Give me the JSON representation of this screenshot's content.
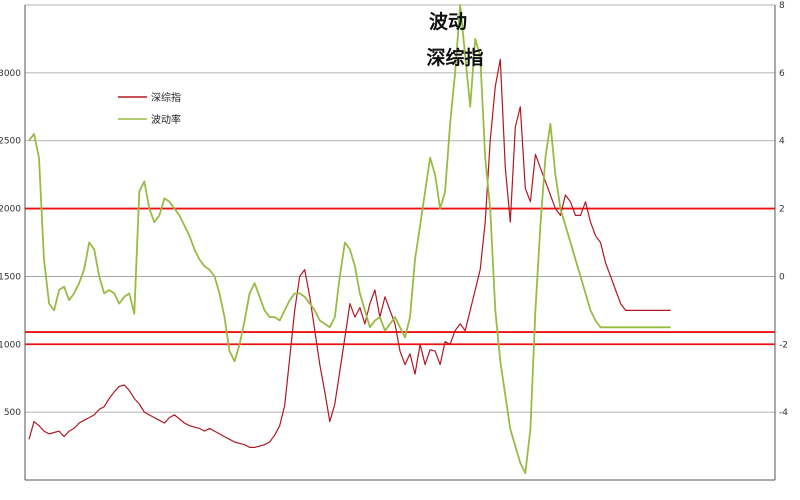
{
  "chart_data": {
    "type": "line",
    "title_line1": "波动",
    "title_line2": "深综指",
    "legend": {
      "position": "top-left",
      "items": [
        "深综指",
        "波动率"
      ]
    },
    "left_axis": {
      "ticks": [
        "500",
        "1000",
        "1500",
        "2000",
        "2500",
        "3000"
      ],
      "ylim": [
        0,
        3500
      ],
      "tick_values": [
        500,
        1000,
        1500,
        2000,
        2500,
        3000
      ]
    },
    "right_axis": {
      "ticks": [
        "-4",
        "-2",
        "0",
        "2",
        "4",
        "6",
        "8"
      ],
      "ylim": [
        -6,
        8
      ],
      "tick_values": [
        -4,
        -2,
        0,
        2,
        4,
        6,
        8
      ]
    },
    "grid": true,
    "reference_lines": [
      {
        "axis": "left",
        "value": 2000
      },
      {
        "axis": "left",
        "value": 1090
      },
      {
        "axis": "left",
        "value": 1000
      }
    ],
    "colors": {
      "szzs": "#b01822",
      "vol": "#99bb44",
      "ref": "#ee1111"
    },
    "x_count": 149,
    "series": [
      {
        "name": "深综指",
        "axis": "left",
        "values": [
          300,
          430,
          400,
          360,
          340,
          350,
          360,
          320,
          360,
          380,
          420,
          440,
          460,
          480,
          520,
          540,
          600,
          650,
          690,
          700,
          660,
          600,
          560,
          500,
          480,
          460,
          440,
          420,
          460,
          480,
          450,
          420,
          400,
          390,
          380,
          360,
          380,
          360,
          340,
          320,
          300,
          280,
          270,
          260,
          240,
          240,
          250,
          260,
          280,
          330,
          400,
          550,
          900,
          1250,
          1500,
          1550,
          1350,
          1100,
          850,
          650,
          430,
          560,
          800,
          1050,
          1300,
          1200,
          1270,
          1150,
          1300,
          1400,
          1200,
          1350,
          1250,
          1150,
          950,
          850,
          930,
          780,
          1000,
          850,
          960,
          950,
          850,
          1020,
          1000,
          1100,
          1150,
          1100,
          1250,
          1400,
          1550,
          1900,
          2500,
          2900,
          3100,
          2300,
          1900,
          2600,
          2750,
          2150,
          2050,
          2400,
          2300,
          2200,
          2100,
          2000,
          1950,
          2100,
          2050,
          1950,
          1950,
          2050,
          1900,
          1800,
          1750,
          1600,
          1500,
          1400,
          1300,
          1250,
          1250,
          1250,
          1250,
          1250,
          1250,
          1250,
          1250,
          1250,
          1250,
          1250,
          1250,
          1250,
          1250,
          1250,
          1250,
          1250,
          1250,
          1250,
          1250,
          1250,
          1250,
          1250,
          1250,
          1250,
          1250,
          1250,
          1250
        ],
        "visible_until_index": 128
      },
      {
        "name": "波动率",
        "axis": "right",
        "values": [
          4.0,
          4.2,
          3.5,
          0.5,
          -0.8,
          -1.0,
          -0.4,
          -0.3,
          -0.7,
          -0.5,
          -0.2,
          0.2,
          1.0,
          0.8,
          0.0,
          -0.5,
          -0.4,
          -0.5,
          -0.8,
          -0.6,
          -0.5,
          -1.1,
          2.5,
          2.8,
          2.0,
          1.6,
          1.8,
          2.3,
          2.2,
          2.0,
          1.8,
          1.5,
          1.2,
          0.8,
          0.5,
          0.3,
          0.2,
          0.0,
          -0.5,
          -1.2,
          -2.2,
          -2.5,
          -2.0,
          -1.3,
          -0.5,
          -0.2,
          -0.6,
          -1.0,
          -1.2,
          -1.2,
          -1.3,
          -1.0,
          -0.7,
          -0.5,
          -0.5,
          -0.6,
          -0.8,
          -1.0,
          -1.3,
          -1.4,
          -1.5,
          -1.2,
          0.0,
          1.0,
          0.8,
          0.3,
          -0.5,
          -1.0,
          -1.5,
          -1.3,
          -1.2,
          -1.6,
          -1.4,
          -1.2,
          -1.5,
          -1.8,
          -1.2,
          0.5,
          1.5,
          2.5,
          3.5,
          3.0,
          2.0,
          2.5,
          4.5,
          6.0,
          8.0,
          6.5,
          5.0,
          7.0,
          6.5,
          3.5,
          2.0,
          -1.0,
          -2.5,
          -3.5,
          -4.5,
          -5.0,
          -5.5,
          -5.8,
          -4.5,
          -1.0,
          1.5,
          3.5,
          4.5,
          3.0,
          2.0,
          1.5,
          1.0,
          0.5,
          0.0,
          -0.5,
          -1.0,
          -1.3,
          -1.5,
          -1.5,
          -1.5,
          -1.5,
          -1.5,
          -1.5,
          -1.5,
          -1.5,
          -1.5,
          -1.5,
          -1.5,
          -1.5,
          -1.5,
          -1.5,
          -1.5,
          -1.5,
          -1.5,
          -1.5,
          -1.5,
          -1.5,
          -1.5,
          -1.5,
          -1.5,
          -1.5,
          -1.5,
          -1.5,
          -1.5,
          -1.5,
          -1.5,
          -1.5,
          -1.5,
          -1.5,
          -1.5,
          -1.5
        ],
        "visible_until_index": 128
      }
    ]
  }
}
